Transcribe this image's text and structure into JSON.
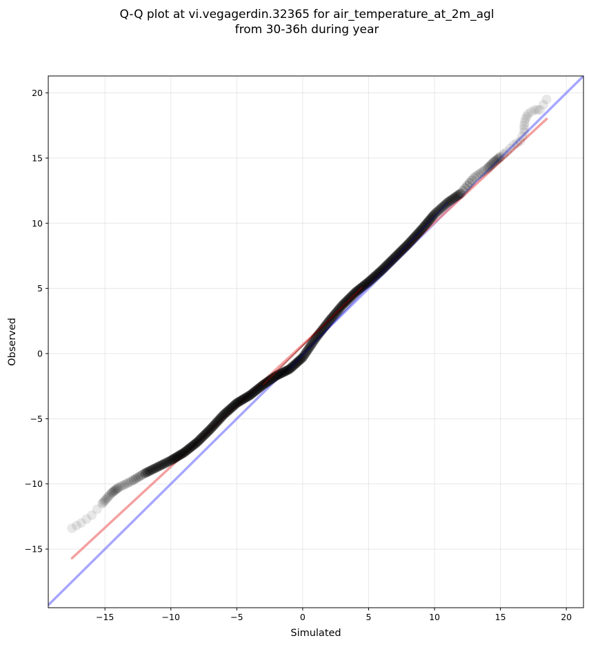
{
  "chart_data": {
    "type": "scatter",
    "title": [
      "Q-Q plot at vi.vegagerdin.32365 for air_temperature_at_2m_agl",
      "from 30-36h during year"
    ],
    "xlabel": "Simulated",
    "ylabel": "Observed",
    "xlim": [
      -19.3,
      21.3
    ],
    "ylim": [
      -19.5,
      21.3
    ],
    "xticks": [
      -15,
      -10,
      -5,
      0,
      5,
      10,
      15,
      20
    ],
    "yticks": [
      -15,
      -10,
      -5,
      0,
      5,
      10,
      15,
      20
    ],
    "xtick_labels": [
      "−15",
      "−10",
      "−5",
      "0",
      "5",
      "10",
      "15",
      "20"
    ],
    "ytick_labels": [
      "−15",
      "−10",
      "−5",
      "0",
      "5",
      "10",
      "15",
      "20"
    ],
    "grid": true,
    "colors": {
      "points": "#000000",
      "fit_line": "#f08080",
      "identity_line": "#8080ff",
      "core_red": "#8b0000",
      "core_blue": "#00008b"
    },
    "quantile_curve": [
      [
        -17.5,
        -13.4
      ],
      [
        -16.8,
        -13.0
      ],
      [
        -16.0,
        -12.4
      ],
      [
        -15.2,
        -11.5
      ],
      [
        -14.5,
        -10.7
      ],
      [
        -14.0,
        -10.3
      ],
      [
        -13.0,
        -9.8
      ],
      [
        -12.0,
        -9.2
      ],
      [
        -11.0,
        -8.7
      ],
      [
        -10.0,
        -8.2
      ],
      [
        -9.0,
        -7.6
      ],
      [
        -8.0,
        -6.8
      ],
      [
        -7.0,
        -5.8
      ],
      [
        -6.0,
        -4.7
      ],
      [
        -5.0,
        -3.8
      ],
      [
        -4.0,
        -3.2
      ],
      [
        -3.0,
        -2.4
      ],
      [
        -2.0,
        -1.7
      ],
      [
        -1.0,
        -1.2
      ],
      [
        0.0,
        -0.3
      ],
      [
        1.0,
        1.2
      ],
      [
        2.0,
        2.5
      ],
      [
        3.0,
        3.7
      ],
      [
        4.0,
        4.7
      ],
      [
        5.0,
        5.5
      ],
      [
        6.0,
        6.4
      ],
      [
        7.0,
        7.4
      ],
      [
        8.0,
        8.4
      ],
      [
        9.0,
        9.5
      ],
      [
        10.0,
        10.7
      ],
      [
        11.0,
        11.6
      ],
      [
        12.0,
        12.3
      ],
      [
        13.0,
        13.5
      ],
      [
        14.0,
        14.2
      ],
      [
        14.5,
        14.7
      ],
      [
        15.0,
        15.1
      ],
      [
        15.5,
        15.5
      ],
      [
        16.0,
        16.0
      ],
      [
        16.5,
        16.3
      ],
      [
        16.8,
        17.0
      ],
      [
        16.8,
        17.5
      ],
      [
        16.9,
        18.0
      ],
      [
        17.1,
        18.4
      ],
      [
        17.6,
        18.7
      ],
      [
        18.0,
        18.7
      ],
      [
        18.5,
        19.5
      ]
    ],
    "fit_line": [
      [
        -17.5,
        -15.7
      ],
      [
        18.5,
        18.0
      ]
    ],
    "identity_line": [
      [
        -19.3,
        -19.3
      ],
      [
        21.3,
        21.3
      ]
    ]
  }
}
